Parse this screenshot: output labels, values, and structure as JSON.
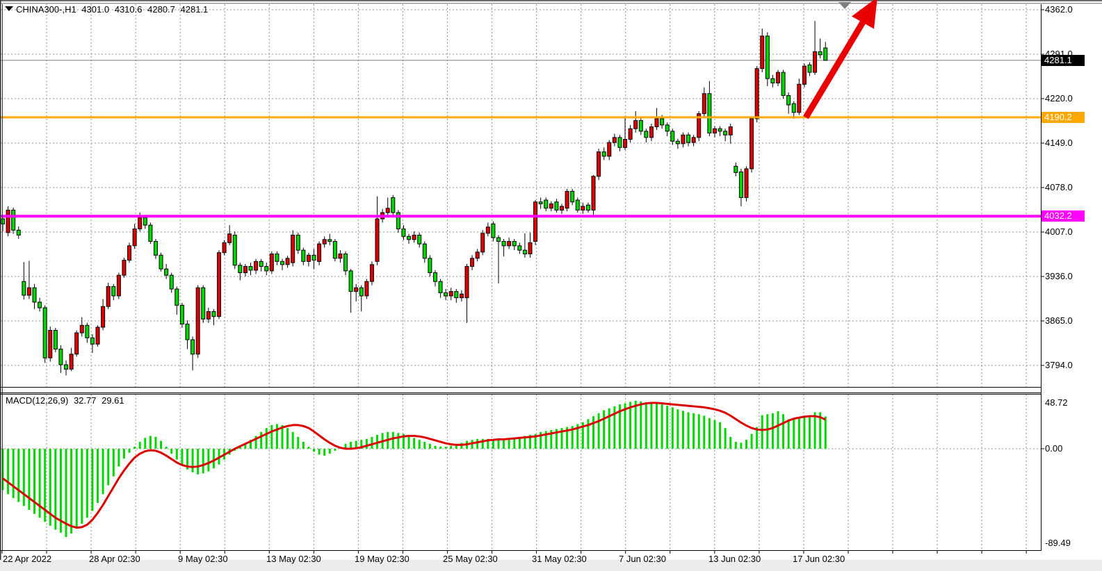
{
  "header": {
    "symbol_period": "CHINA300-,H1",
    "open": "4301.0",
    "high": "4310.6",
    "low": "4280.7",
    "close": "4281.1"
  },
  "price_axis": {
    "labels": [
      "4362.0",
      "4291.0",
      "4220.0",
      "4149.0",
      "4078.0",
      "4007.0",
      "3936.0",
      "3865.0",
      "3794.0"
    ],
    "bid_label": "4281.1",
    "resistance_label": "4190.2",
    "support_label": "4032.2"
  },
  "time_axis": {
    "labels": [
      "22 Apr 2022",
      "28 Apr 02:30",
      "9 May 02:30",
      "13 May 02:30",
      "19 May 02:30",
      "25 May 02:30",
      "31 May 02:30",
      "7 Jun 02:30",
      "13 Jun 02:30",
      "17 Jun 02:30"
    ]
  },
  "macd_panel": {
    "label": "MACD(12,26,9)",
    "main_value": "32.77",
    "signal_value": "29.61",
    "axis_max": "48.72",
    "axis_zero": "0.00",
    "axis_min": "-89.49"
  },
  "icons": {
    "symbol_dropdown": "triangle-down-icon",
    "scroll_marker": "triangle-down-icon"
  },
  "colors": {
    "bull_candle": "#DE0000",
    "bear_candle": "#00D800",
    "candle_outline": "#000000",
    "macd_histogram": "#00D800",
    "macd_signal": "#DC0000",
    "resistance_line": "#FFA800",
    "support_line": "#FF00FF",
    "bid_line": "#808080",
    "grid": "#909090",
    "arrow": "#E80000",
    "background": "#FFFFFF"
  },
  "chart_data": {
    "type": "candlestick",
    "symbol": "CHINA300-",
    "timeframe": "H1",
    "title": "CHINA300-,H1  4301.0 4310.6 4280.7 4281.1",
    "legend_position": "top-left",
    "grid": true,
    "y_axis_ticks": [
      4362.0,
      4291.0,
      4220.0,
      4149.0,
      4078.0,
      4007.0,
      3936.0,
      3865.0,
      3794.0
    ],
    "x_axis_labels": [
      "22 Apr 2022",
      "28 Apr 02:30",
      "9 May 02:30",
      "13 May 02:30",
      "19 May 02:30",
      "25 May 02:30",
      "31 May 02:30",
      "7 Jun 02:30",
      "13 Jun 02:30",
      "17 Jun 02:30"
    ],
    "current_ohlc": {
      "open": 4301.0,
      "high": 4310.6,
      "low": 4280.7,
      "close": 4281.1
    },
    "levels": [
      {
        "name": "bid-price",
        "price": 4281.1,
        "color": "#808080",
        "style": "solid-thin"
      },
      {
        "name": "resistance",
        "price": 4190.2,
        "color": "#FFA800",
        "style": "solid-thick"
      },
      {
        "name": "support",
        "price": 4032.2,
        "color": "#FF00FF",
        "style": "solid-thick"
      }
    ],
    "candle_color_convention": {
      "bull_close_above_open": "red",
      "bear_close_below_open": "green"
    },
    "candles": [
      [
        4028,
        4034,
        4008,
        4020
      ],
      [
        4006,
        4048,
        4000,
        4042
      ],
      [
        4042,
        4046,
        4004,
        4010
      ],
      [
        4010,
        4016,
        3996,
        4002
      ],
      [
        3928,
        3959,
        3899,
        3906
      ],
      [
        3906,
        3961,
        3900,
        3918
      ],
      [
        3918,
        3924,
        3884,
        3895
      ],
      [
        3895,
        3902,
        3880,
        3886
      ],
      [
        3886,
        3890,
        3798,
        3806
      ],
      [
        3806,
        3856,
        3800,
        3850
      ],
      [
        3850,
        3854,
        3815,
        3820
      ],
      [
        3820,
        3826,
        3782,
        3795
      ],
      [
        3795,
        3802,
        3778,
        3788
      ],
      [
        3788,
        3822,
        3785,
        3812
      ],
      [
        3812,
        3850,
        3808,
        3846
      ],
      [
        3846,
        3871,
        3840,
        3858
      ],
      [
        3858,
        3862,
        3830,
        3838
      ],
      [
        3838,
        3844,
        3814,
        3828
      ],
      [
        3828,
        3858,
        3824,
        3855
      ],
      [
        3855,
        3900,
        3850,
        3888
      ],
      [
        3888,
        3926,
        3884,
        3920
      ],
      [
        3920,
        3924,
        3898,
        3905
      ],
      [
        3905,
        3942,
        3900,
        3938
      ],
      [
        3938,
        3966,
        3934,
        3962
      ],
      [
        3962,
        3990,
        3958,
        3985
      ],
      [
        3985,
        4020,
        3980,
        4012
      ],
      [
        4012,
        4038,
        4008,
        4030
      ],
      [
        4030,
        4034,
        4012,
        4018
      ],
      [
        4018,
        4022,
        3988,
        3992
      ],
      [
        3992,
        3996,
        3964,
        3970
      ],
      [
        3970,
        3974,
        3944,
        3948
      ],
      [
        3948,
        3956,
        3932,
        3938
      ],
      [
        3938,
        3942,
        3910,
        3916
      ],
      [
        3916,
        3920,
        3875,
        3890
      ],
      [
        3890,
        3894,
        3854,
        3860
      ],
      [
        3860,
        3866,
        3820,
        3835
      ],
      [
        3835,
        3840,
        3786,
        3812
      ],
      [
        3812,
        3922,
        3806,
        3918
      ],
      [
        3918,
        3922,
        3862,
        3868
      ],
      [
        3868,
        3886,
        3862,
        3880
      ],
      [
        3880,
        3884,
        3858,
        3872
      ],
      [
        3872,
        3978,
        3868,
        3974
      ],
      [
        3974,
        3994,
        3970,
        3990
      ],
      [
        3990,
        4018,
        3986,
        4004
      ],
      [
        4002,
        4008,
        3948,
        3954
      ],
      [
        3954,
        3958,
        3930,
        3942
      ],
      [
        3942,
        3956,
        3936,
        3952
      ],
      [
        3952,
        3958,
        3938,
        3946
      ],
      [
        3946,
        3964,
        3940,
        3960
      ],
      [
        3960,
        3964,
        3944,
        3952
      ],
      [
        3952,
        3958,
        3938,
        3945
      ],
      [
        3945,
        3976,
        3940,
        3972
      ],
      [
        3972,
        3976,
        3954,
        3960
      ],
      [
        3960,
        3964,
        3946,
        3955
      ],
      [
        3955,
        3969,
        3950,
        3965
      ],
      [
        3958,
        4010,
        3952,
        4002
      ],
      [
        4002,
        4006,
        3972,
        3978
      ],
      [
        3978,
        3982,
        3954,
        3960
      ],
      [
        3960,
        3974,
        3952,
        3970
      ],
      [
        3970,
        3980,
        3948,
        3962
      ],
      [
        3960,
        3992,
        3954,
        3988
      ],
      [
        3988,
        4000,
        3982,
        3995
      ],
      [
        3995,
        4004,
        3986,
        3992
      ],
      [
        3992,
        3996,
        3960,
        3965
      ],
      [
        3965,
        3978,
        3958,
        3972
      ],
      [
        3972,
        3976,
        3938,
        3945
      ],
      [
        3945,
        3948,
        3878,
        3912
      ],
      [
        3912,
        3924,
        3896,
        3918
      ],
      [
        3918,
        3922,
        3880,
        3905
      ],
      [
        3905,
        3932,
        3900,
        3928
      ],
      [
        3928,
        3960,
        3922,
        3955
      ],
      [
        3960,
        4064,
        3954,
        4028
      ],
      [
        4028,
        4044,
        4022,
        4038
      ],
      [
        4038,
        4062,
        4032,
        4045
      ],
      [
        4062,
        4066,
        4032,
        4038
      ],
      [
        4038,
        4042,
        4006,
        4012
      ],
      [
        4012,
        4018,
        3994,
        4000
      ],
      [
        4000,
        4004,
        3988,
        3995
      ],
      [
        3995,
        4008,
        3990,
        4002
      ],
      [
        4002,
        4006,
        3982,
        3988
      ],
      [
        3988,
        3992,
        3958,
        3965
      ],
      [
        3965,
        3970,
        3936,
        3942
      ],
      [
        3942,
        3946,
        3920,
        3928
      ],
      [
        3928,
        3932,
        3902,
        3910
      ],
      [
        3910,
        3916,
        3898,
        3905
      ],
      [
        3905,
        3918,
        3898,
        3912
      ],
      [
        3912,
        3916,
        3894,
        3902
      ],
      [
        3902,
        3914,
        3896,
        3908
      ],
      [
        3902,
        3956,
        3862,
        3952
      ],
      [
        3952,
        3970,
        3946,
        3965
      ],
      [
        3965,
        3980,
        3960,
        3975
      ],
      [
        3975,
        4010,
        3970,
        4005
      ],
      [
        4005,
        4022,
        4000,
        4015
      ],
      [
        4020,
        4024,
        3992,
        3998
      ],
      [
        3998,
        4002,
        3925,
        3992
      ],
      [
        3992,
        3996,
        3968,
        3985
      ],
      [
        3985,
        3998,
        3980,
        3992
      ],
      [
        3992,
        3996,
        3978,
        3985
      ],
      [
        3985,
        3990,
        3972,
        3978
      ],
      [
        3978,
        4005,
        3966,
        3972
      ],
      [
        3972,
        4006,
        3966,
        3990
      ],
      [
        3992,
        4058,
        3986,
        4055
      ],
      [
        4055,
        4062,
        4044,
        4052
      ],
      [
        4058,
        4062,
        4040,
        4045
      ],
      [
        4045,
        4056,
        4040,
        4052
      ],
      [
        4055,
        4060,
        4038,
        4042
      ],
      [
        4042,
        4052,
        4036,
        4048
      ],
      [
        4045,
        4076,
        4040,
        4072
      ],
      [
        4072,
        4076,
        4050,
        4055
      ],
      [
        4058,
        4062,
        4038,
        4042
      ],
      [
        4042,
        4054,
        4036,
        4048
      ],
      [
        4050,
        4054,
        4038,
        4042
      ],
      [
        4042,
        4098,
        4032,
        4096
      ],
      [
        4096,
        4140,
        4090,
        4135
      ],
      [
        4135,
        4142,
        4122,
        4128
      ],
      [
        4128,
        4154,
        4122,
        4150
      ],
      [
        4150,
        4164,
        4144,
        4158
      ],
      [
        4158,
        4162,
        4136,
        4142
      ],
      [
        4142,
        4192,
        4138,
        4155
      ],
      [
        4155,
        4178,
        4150,
        4172
      ],
      [
        4172,
        4200,
        4166,
        4185
      ],
      [
        4185,
        4190,
        4162,
        4168
      ],
      [
        4168,
        4172,
        4150,
        4158
      ],
      [
        4158,
        4180,
        4152,
        4175
      ],
      [
        4175,
        4205,
        4170,
        4188
      ],
      [
        4188,
        4194,
        4172,
        4178
      ],
      [
        4178,
        4182,
        4160,
        4168
      ],
      [
        4168,
        4172,
        4146,
        4152
      ],
      [
        4152,
        4156,
        4140,
        4148
      ],
      [
        4148,
        4166,
        4142,
        4162
      ],
      [
        4162,
        4166,
        4144,
        4150
      ],
      [
        4150,
        4162,
        4144,
        4158
      ],
      [
        4158,
        4200,
        4152,
        4196
      ],
      [
        4196,
        4238,
        4190,
        4228
      ],
      [
        4228,
        4248,
        4160,
        4165
      ],
      [
        4165,
        4176,
        4158,
        4172
      ],
      [
        4172,
        4176,
        4160,
        4168
      ],
      [
        4168,
        4172,
        4152,
        4162
      ],
      [
        4162,
        4180,
        4148,
        4175
      ],
      [
        4112,
        4118,
        4096,
        4102
      ],
      [
        4103,
        4108,
        4048,
        4062
      ],
      [
        4062,
        4112,
        4056,
        4108
      ],
      [
        4108,
        4190,
        4102,
        4188
      ],
      [
        4188,
        4272,
        4182,
        4268
      ],
      [
        4268,
        4332,
        4262,
        4320
      ],
      [
        4320,
        4326,
        4240,
        4252
      ],
      [
        4252,
        4258,
        4238,
        4245
      ],
      [
        4245,
        4266,
        4240,
        4262
      ],
      [
        4262,
        4266,
        4220,
        4225
      ],
      [
        4225,
        4230,
        4196,
        4210
      ],
      [
        4212,
        4216,
        4188,
        4198
      ],
      [
        4198,
        4252,
        4194,
        4243
      ],
      [
        4243,
        4276,
        4238,
        4272
      ],
      [
        4274,
        4278,
        4256,
        4262
      ],
      [
        4262,
        4344,
        4258,
        4295
      ],
      [
        4295,
        4316,
        4284,
        4290
      ],
      [
        4301,
        4310.6,
        4280.7,
        4281.1
      ]
    ],
    "indicator": {
      "name": "MACD",
      "params": "12,26,9",
      "main": 32.77,
      "signal": 29.61,
      "axis_max": 48.72,
      "axis_min": -89.49,
      "histogram": [
        -42,
        -46,
        -50,
        -54,
        -58,
        -62,
        -66,
        -70,
        -74,
        -78,
        -82,
        -85,
        -89.49,
        -86,
        -81,
        -76,
        -70,
        -63,
        -55,
        -46,
        -37,
        -28,
        -18,
        -10,
        -4,
        2,
        7,
        11,
        13,
        12,
        8,
        2,
        -5,
        -11,
        -16,
        -21,
        -24,
        -26,
        -25,
        -23,
        -20,
        -16,
        -11,
        -6,
        -2,
        2,
        5,
        9,
        13,
        17,
        21,
        24,
        25,
        24,
        21,
        17,
        12,
        7,
        2,
        -3,
        -6,
        -7,
        -5,
        -2,
        2,
        5,
        7,
        8,
        9,
        10,
        12,
        14,
        16,
        17,
        17,
        16,
        15,
        13,
        11,
        9,
        7,
        5,
        3,
        2,
        2,
        3,
        4,
        6,
        8,
        9,
        10,
        10,
        10,
        9,
        9,
        9,
        10,
        11,
        12,
        13,
        14,
        15,
        17,
        18,
        19,
        20,
        21,
        22,
        23,
        25,
        27,
        30,
        33,
        36,
        39,
        41,
        43,
        45,
        46,
        47.5,
        48.72,
        48,
        47,
        46.5,
        46,
        45,
        43.5,
        42,
        40,
        38.5,
        37,
        36,
        35,
        33.5,
        31,
        29,
        27,
        21,
        12,
        7,
        6,
        9,
        15,
        22,
        34,
        35,
        36,
        38,
        35,
        30,
        30,
        31,
        32,
        32,
        37,
        37,
        32.77
      ],
      "signal_line": [
        -30,
        -34,
        -38,
        -42,
        -46,
        -50,
        -54,
        -58,
        -62,
        -66,
        -70,
        -73,
        -76,
        -78.5,
        -80,
        -79.5,
        -77,
        -72,
        -65,
        -57,
        -48,
        -39,
        -30,
        -22,
        -15,
        -9,
        -5,
        -2.5,
        -1.5,
        -2,
        -4,
        -7,
        -10.5,
        -14,
        -16.5,
        -18,
        -18.5,
        -18,
        -16.5,
        -14.5,
        -12,
        -9,
        -6,
        -3,
        0,
        2.5,
        5,
        7.5,
        10,
        12.5,
        15,
        17.5,
        19.5,
        21.5,
        23,
        24,
        24,
        23,
        21,
        17.5,
        13.5,
        9.5,
        6,
        3,
        1,
        0,
        0,
        0.5,
        1.5,
        3,
        4.5,
        6,
        7.5,
        9,
        10.5,
        11.5,
        12.5,
        13,
        13,
        12.5,
        11.5,
        10,
        8.5,
        7,
        5.5,
        4.5,
        4,
        4,
        4.5,
        5.5,
        6.5,
        7.5,
        8.5,
        9,
        9.5,
        9.5,
        10,
        10.5,
        11,
        11.5,
        12,
        12.5,
        13.5,
        14.5,
        15.5,
        16.5,
        17.5,
        18.5,
        19.5,
        21,
        22.5,
        24,
        26,
        28,
        30.5,
        33,
        35.5,
        38,
        40,
        42,
        43.5,
        45,
        46,
        46.5,
        46.5,
        46,
        45.5,
        45,
        44.5,
        44,
        43.5,
        43,
        42.5,
        42,
        41,
        40,
        38.5,
        36.5,
        33.5,
        30,
        26.5,
        23.5,
        21,
        19.5,
        19,
        19.5,
        21,
        23.5,
        26,
        28.5,
        30.5,
        31.5,
        32.5,
        33,
        33,
        32,
        29.61
      ]
    },
    "annotations": [
      {
        "type": "trend-arrow",
        "direction": "up-right",
        "color": "#E80000",
        "from_xy": [
          1159,
          169
        ],
        "to_xy": [
          1262,
          -4
        ],
        "note": "breakout above 4190.2 resistance"
      }
    ]
  }
}
